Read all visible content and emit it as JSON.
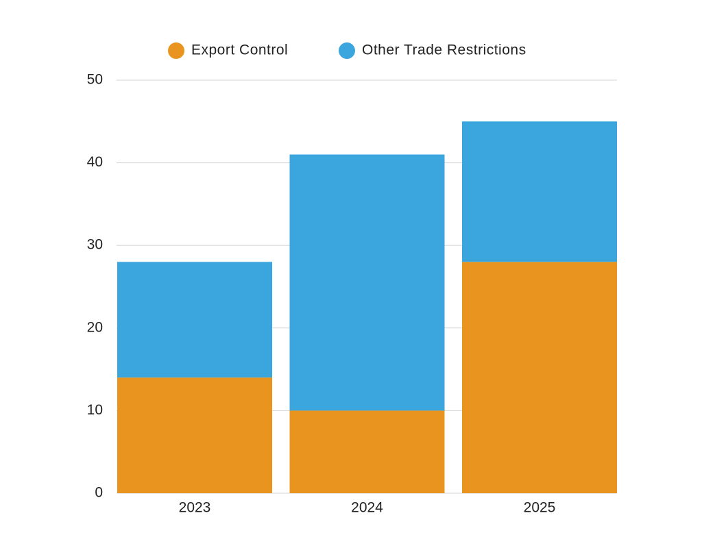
{
  "chart_data": {
    "type": "stacked-bar",
    "categories": [
      "2023",
      "2024",
      "2025"
    ],
    "series": [
      {
        "name": "Export Control",
        "color": "#e8941e",
        "values": [
          14,
          10,
          28
        ]
      },
      {
        "name": "Other Trade Restrictions",
        "color": "#3aa6dd",
        "values": [
          14,
          31,
          17
        ]
      }
    ],
    "ylim": [
      0,
      50
    ],
    "yticks": [
      0,
      10,
      20,
      30,
      40,
      50
    ],
    "grid": true,
    "legend": "top"
  }
}
